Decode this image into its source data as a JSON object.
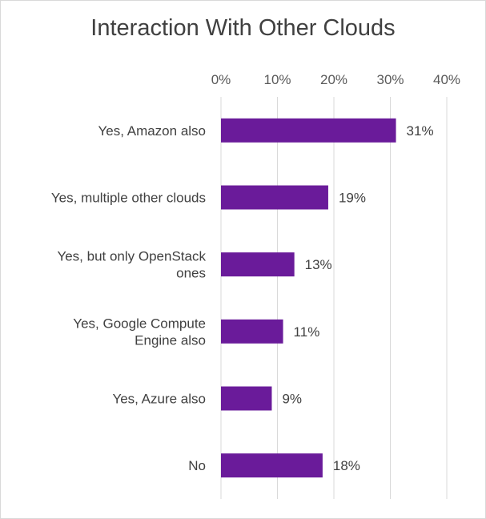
{
  "chart_data": {
    "type": "bar",
    "orientation": "horizontal",
    "title": "Interaction With Other Clouds",
    "categories": [
      "Yes, Amazon also",
      "Yes, multiple other clouds",
      "Yes, but only OpenStack ones",
      "Yes, Google Compute Engine also",
      "Yes, Azure also",
      "No"
    ],
    "category_lines": [
      [
        "Yes, Amazon also"
      ],
      [
        "Yes, multiple other clouds"
      ],
      [
        "Yes, but only OpenStack",
        "ones"
      ],
      [
        "Yes, Google Compute",
        "Engine also"
      ],
      [
        "Yes, Azure also"
      ],
      [
        "No"
      ]
    ],
    "values": [
      31,
      19,
      13,
      11,
      9,
      18
    ],
    "data_labels": [
      "31%",
      "19%",
      "13%",
      "11%",
      "9%",
      "18%"
    ],
    "xlim": [
      0,
      40
    ],
    "ticks": [
      0,
      10,
      20,
      30,
      40
    ],
    "tick_labels": [
      "0%",
      "10%",
      "20%",
      "30%",
      "40%"
    ],
    "axis_position": "top",
    "grid": true,
    "bar_color": "#6a1b9a",
    "xlabel": "",
    "ylabel": ""
  }
}
